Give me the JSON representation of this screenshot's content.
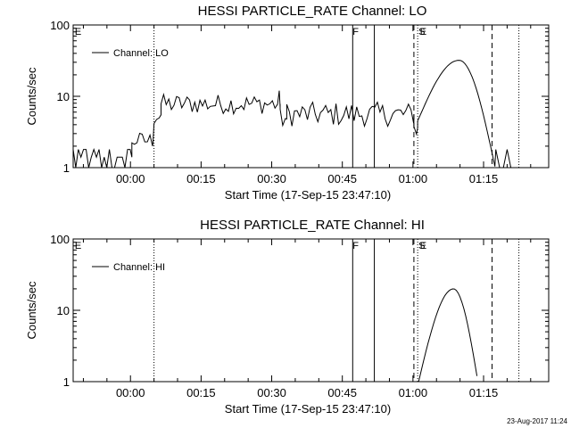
{
  "footer": {
    "timestamp": "23-Aug-2017 11:24"
  },
  "chart_data": [
    {
      "type": "line",
      "title": "HESSI PARTICLE_RATE Channel: LO",
      "xlabel": "Start Time (17-Sep-15 23:47:10)",
      "ylabel": "Counts/sec",
      "yscale": "log",
      "ylim": [
        1,
        100
      ],
      "xlim_minutes": [
        -12.17,
        88.83
      ],
      "xticks": [
        {
          "t": 0,
          "label": "00:00"
        },
        {
          "t": 15,
          "label": "00:15"
        },
        {
          "t": 30,
          "label": "00:30"
        },
        {
          "t": 45,
          "label": "00:45"
        },
        {
          "t": 60,
          "label": "01:00"
        },
        {
          "t": 75,
          "label": "01:15"
        }
      ],
      "yticks": [
        {
          "v": 1,
          "label": "1"
        },
        {
          "v": 10,
          "label": "10"
        },
        {
          "v": 100,
          "label": "100"
        }
      ],
      "legend": {
        "label": "Channel: LO",
        "position": "top-left"
      },
      "flags": [
        {
          "t": -12.0,
          "label": "E"
        },
        {
          "t": 47.0,
          "label": "F"
        },
        {
          "t": 61.0,
          "label": "S"
        },
        {
          "t": 61.3,
          "label": "E"
        }
      ],
      "vlines": [
        {
          "t": 5.0,
          "style": "dotted"
        },
        {
          "t": 47.2,
          "style": "solid"
        },
        {
          "t": 51.8,
          "style": "solid"
        },
        {
          "t": 60.2,
          "style": "dashed"
        },
        {
          "t": 61.0,
          "style": "dotted"
        },
        {
          "t": 76.8,
          "style": "dashed"
        },
        {
          "t": 82.5,
          "style": "dotted"
        }
      ],
      "series": [
        {
          "name": "Channel: LO",
          "segments": [
            {
              "t0": -12.17,
              "t1": 0.3,
              "level": 1.4,
              "jitter": 0.32,
              "dropouts": true
            },
            {
              "t0": 0.3,
              "t1": 4.8,
              "level": 2.4,
              "jitter": 0.12
            },
            {
              "t0": 5.0,
              "t1": 6.5,
              "level": 5.5,
              "jitter": 0.18
            },
            {
              "t0": 6.5,
              "t1": 31.8,
              "level": 7.8,
              "jitter": 0.14
            },
            {
              "t0": 31.8,
              "t1": 33.2,
              "level": 4.8,
              "jitter": 0.15
            },
            {
              "t0": 33.2,
              "t1": 60.2,
              "level": 5.6,
              "jitter": 0.17
            },
            {
              "t0": 60.2,
              "t1": 61.0,
              "level": 3.6,
              "jitter": 0.15
            }
          ],
          "spike": {
            "t": 31.6,
            "value": 12
          },
          "peak": {
            "t0": 61.0,
            "tpeak": 69.8,
            "t1": 77.6,
            "start": 4.5,
            "max": 32,
            "end": 0.9
          },
          "tail": {
            "t0": 77.6,
            "t1": 82.6,
            "level": 1.4
          }
        }
      ]
    },
    {
      "type": "line",
      "title": "HESSI PARTICLE_RATE Channel: HI",
      "xlabel": "Start Time (17-Sep-15 23:47:10)",
      "ylabel": "Counts/sec",
      "yscale": "log",
      "ylim": [
        1,
        100
      ],
      "xlim_minutes": [
        -12.17,
        88.83
      ],
      "xticks": [
        {
          "t": 0,
          "label": "00:00"
        },
        {
          "t": 15,
          "label": "00:15"
        },
        {
          "t": 30,
          "label": "00:30"
        },
        {
          "t": 45,
          "label": "00:45"
        },
        {
          "t": 60,
          "label": "01:00"
        },
        {
          "t": 75,
          "label": "01:15"
        }
      ],
      "yticks": [
        {
          "v": 1,
          "label": "1"
        },
        {
          "v": 10,
          "label": "10"
        },
        {
          "v": 100,
          "label": "100"
        }
      ],
      "legend": {
        "label": "Channel: HI",
        "position": "top-left"
      },
      "flags": [
        {
          "t": -12.0,
          "label": "E"
        },
        {
          "t": 47.0,
          "label": "F"
        },
        {
          "t": 61.0,
          "label": "S"
        },
        {
          "t": 61.3,
          "label": "E"
        }
      ],
      "vlines": [
        {
          "t": 5.0,
          "style": "dotted"
        },
        {
          "t": 47.2,
          "style": "solid"
        },
        {
          "t": 51.8,
          "style": "solid"
        },
        {
          "t": 60.2,
          "style": "dashed"
        },
        {
          "t": 61.0,
          "style": "dotted"
        },
        {
          "t": 76.8,
          "style": "dashed"
        },
        {
          "t": 82.5,
          "style": "dotted"
        }
      ],
      "series": [
        {
          "name": "Channel: HI",
          "segments": [],
          "peak": {
            "t0": 61.2,
            "tpeak": 68.6,
            "t1": 73.8,
            "start": 1.0,
            "max": 20,
            "end": 1.0
          }
        }
      ]
    }
  ]
}
